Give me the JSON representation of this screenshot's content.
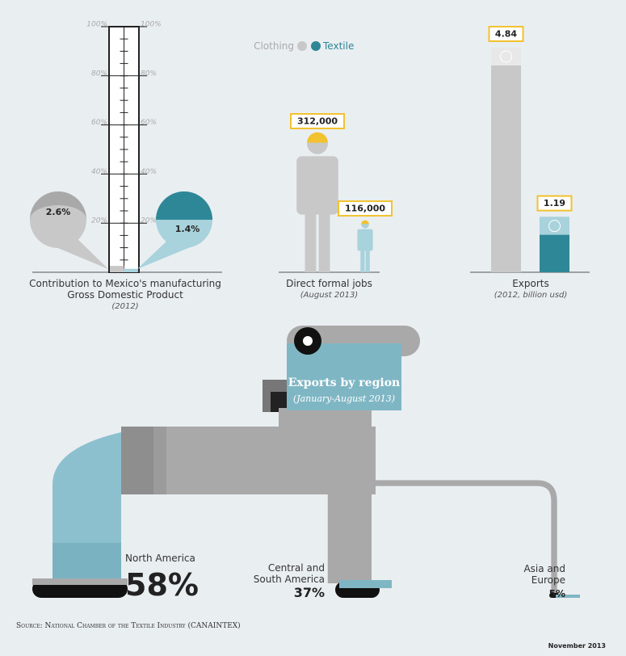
{
  "legend": [
    {
      "name": "Clothing",
      "color": "#c8c8c8"
    },
    {
      "name": "Textile",
      "color": "#2e8797"
    }
  ],
  "chart_data": [
    {
      "type": "gauge",
      "title": "Contribution to Mexico's manufacturing Gross Domestic Product",
      "subtitle": "(2012)",
      "values": [
        2.6,
        1.4
      ],
      "value_labels": [
        "2.6%",
        "1.4%"
      ],
      "ylim": [
        0,
        100
      ],
      "yticks": [
        {
          "value": 20,
          "label": "20%"
        },
        {
          "value": 40,
          "label": "40%"
        },
        {
          "value": 60,
          "label": "60%"
        },
        {
          "value": 80,
          "label": "80%"
        },
        {
          "value": 100,
          "label": "100%"
        }
      ]
    },
    {
      "type": "pictograph",
      "title": "Direct formal jobs",
      "subtitle": "(August 2013)",
      "values": [
        312000,
        116000
      ],
      "value_labels": [
        "312,000",
        "116,000"
      ]
    },
    {
      "type": "bar",
      "title": "Exports",
      "subtitle": "(2012, billion usd)",
      "values": [
        4.84,
        1.19
      ]
    },
    {
      "type": "flow",
      "title": "Exports by region",
      "subtitle": "(January-August 2013)",
      "categories": [
        "North America",
        "Central and South America",
        "Asia and Europe"
      ],
      "values": [
        58,
        37,
        5
      ],
      "value_labels": [
        "58%",
        "37%",
        "5%"
      ]
    }
  ],
  "source": "Source: National Chamber of the Textile Industry (CANAINTEX)",
  "date": "November 2013"
}
